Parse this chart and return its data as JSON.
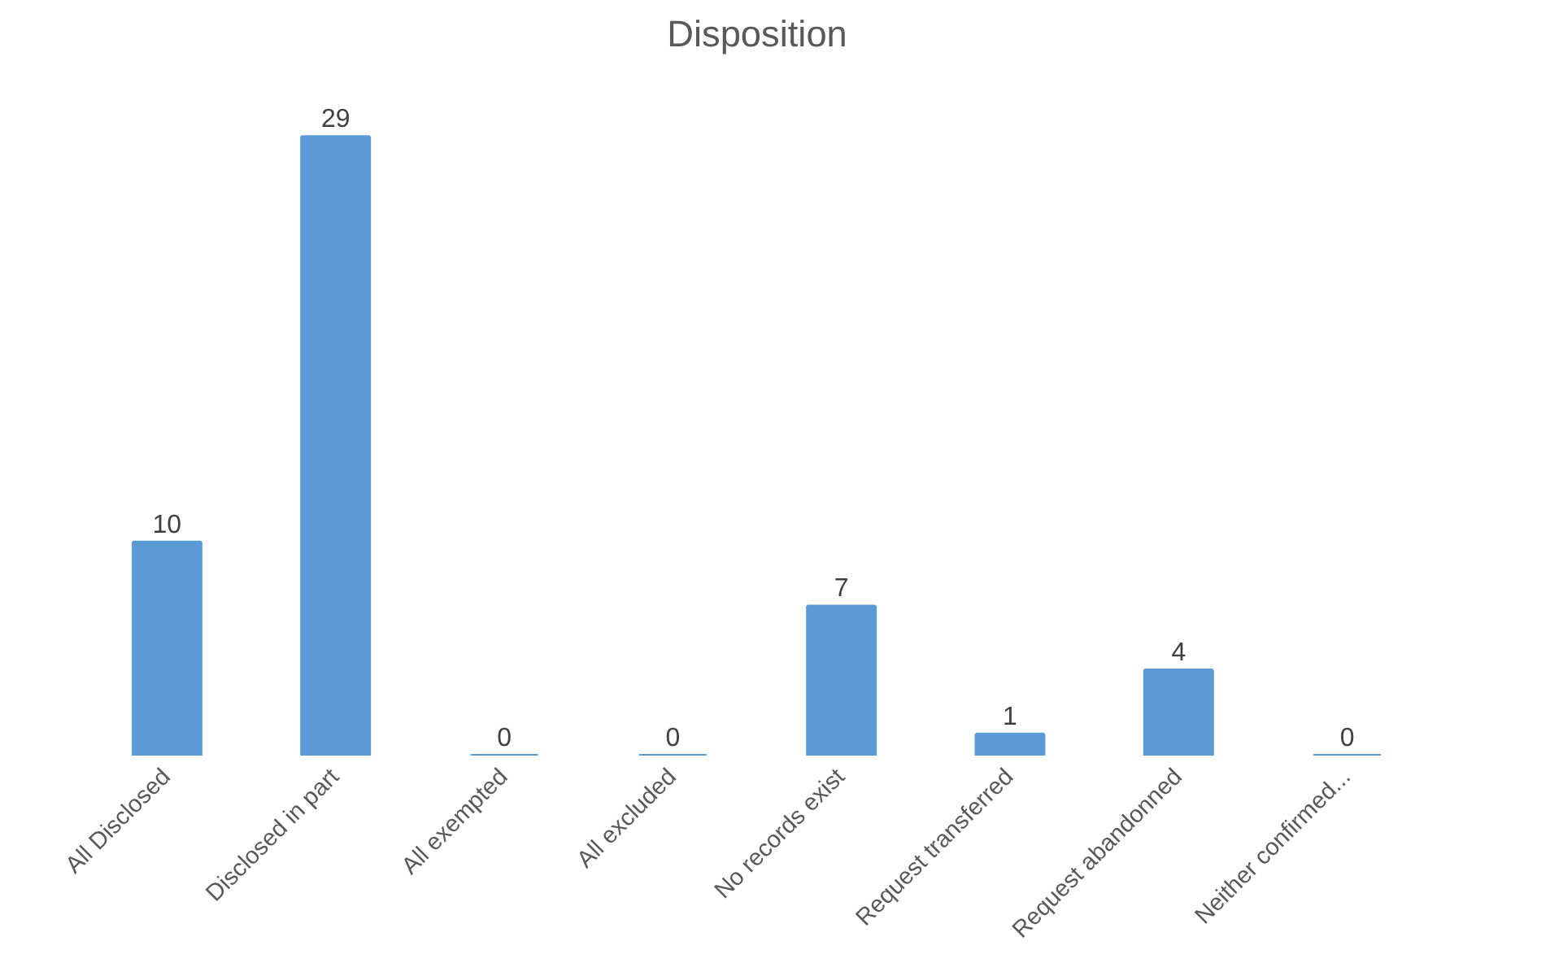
{
  "chart_data": {
    "type": "bar",
    "title": "Disposition",
    "categories": [
      "All Disclosed",
      "Disclosed in part",
      "All exempted",
      "All excluded",
      "No records exist",
      "Request transferred",
      "Request abandonned",
      "Neither confirmed..."
    ],
    "values": [
      10,
      29,
      0,
      0,
      7,
      1,
      4,
      0
    ],
    "color": "#5b9bd5",
    "data_labels": true,
    "grid": false
  }
}
